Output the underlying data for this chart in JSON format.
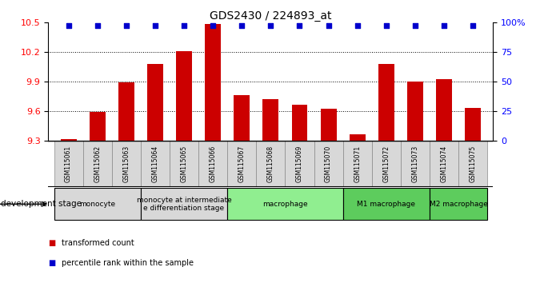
{
  "title": "GDS2430 / 224893_at",
  "samples": [
    "GSM115061",
    "GSM115062",
    "GSM115063",
    "GSM115064",
    "GSM115065",
    "GSM115066",
    "GSM115067",
    "GSM115068",
    "GSM115069",
    "GSM115070",
    "GSM115071",
    "GSM115072",
    "GSM115073",
    "GSM115074",
    "GSM115075"
  ],
  "bar_values": [
    9.31,
    9.59,
    9.89,
    10.08,
    10.21,
    10.49,
    9.76,
    9.72,
    9.66,
    9.62,
    9.36,
    10.08,
    9.9,
    9.92,
    9.63
  ],
  "bar_color": "#cc0000",
  "percentile_color": "#0000cc",
  "ylim_left": [
    9.3,
    10.5
  ],
  "yticks_left": [
    9.3,
    9.6,
    9.9,
    10.2,
    10.5
  ],
  "ylim_right": [
    0,
    100
  ],
  "yticks_right": [
    0,
    25,
    50,
    75,
    100
  ],
  "yticklabels_right": [
    "0",
    "25",
    "50",
    "75",
    "100%"
  ],
  "groups": [
    {
      "label": "monocyte",
      "start": 0,
      "end": 2,
      "color": "#d8d8d8"
    },
    {
      "label": "monocyte at intermediate\ne differentiation stage",
      "start": 3,
      "end": 5,
      "color": "#d8d8d8"
    },
    {
      "label": "macrophage",
      "start": 6,
      "end": 9,
      "color": "#90ee90"
    },
    {
      "label": "M1 macrophage",
      "start": 10,
      "end": 12,
      "color": "#5dcc5d"
    },
    {
      "label": "M2 macrophage",
      "start": 13,
      "end": 14,
      "color": "#5dcc5d"
    }
  ],
  "dev_stage_label": "development stage",
  "legend_items": [
    {
      "label": "transformed count",
      "color": "#cc0000"
    },
    {
      "label": "percentile rank within the sample",
      "color": "#0000cc"
    }
  ]
}
